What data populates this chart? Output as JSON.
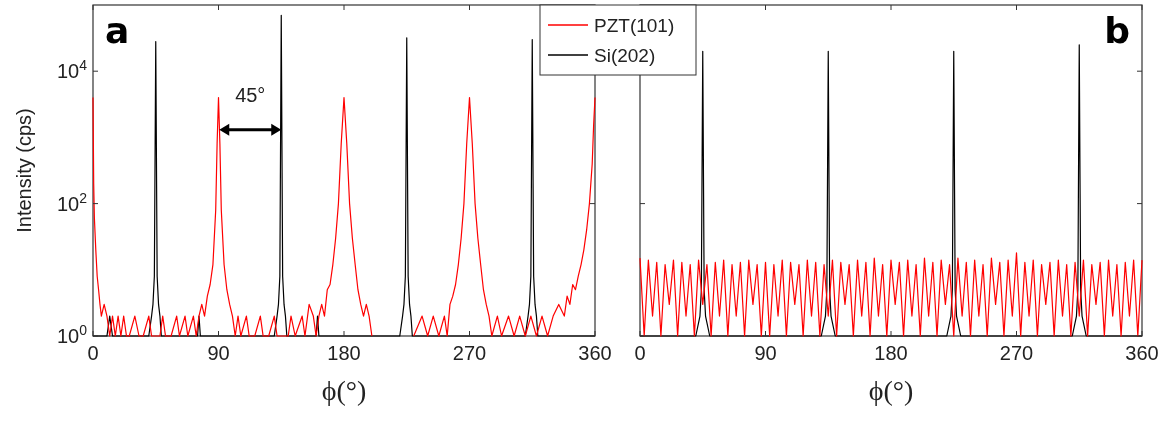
{
  "chart_data": [
    {
      "type": "line",
      "ylabel": "Intensity (cps)",
      "xlabel": "ϕ(°)",
      "xlim": [
        0,
        360
      ],
      "xticks": [
        0,
        90,
        180,
        270,
        360
      ],
      "ylim": [
        1,
        100000
      ],
      "yticks": [
        {
          "value": 1,
          "label": "10$^{0}$"
        },
        {
          "value": 100,
          "label": "10$^{2}$"
        },
        {
          "value": 10000,
          "label": "10$^{4}$"
        }
      ],
      "log": "y",
      "grid": false,
      "legend": "top right",
      "marker": "none",
      "line_style": "solid",
      "annotations": [
        "a",
        {
          "text": "45°",
          "x": 135,
          "y": 1300
        }
      ],
      "series": [
        {
          "name": "PZT(101)",
          "color": "#ff0000",
          "x": [
            0,
            0.5,
            1,
            2,
            3,
            4,
            5,
            6,
            8,
            10,
            12,
            14,
            16,
            18,
            20,
            22,
            24,
            26,
            30,
            33,
            36,
            40,
            42,
            48,
            50,
            52,
            56,
            60,
            62,
            66,
            68,
            72,
            74,
            76,
            78,
            80,
            82,
            84,
            86,
            88,
            89,
            90,
            91,
            92,
            94,
            96,
            98,
            100,
            102,
            104,
            106,
            110,
            112,
            116,
            120,
            122,
            126,
            130,
            132,
            140,
            142,
            145,
            150,
            152,
            155,
            158,
            160,
            162,
            164,
            166,
            168,
            170,
            172,
            174,
            176,
            178,
            180,
            182,
            184,
            186,
            188,
            190,
            192,
            194,
            196,
            198,
            200,
            205,
            210,
            220,
            225,
            230,
            236,
            240,
            244,
            248,
            252,
            254,
            256,
            258,
            260,
            262,
            264,
            266,
            268,
            270,
            272,
            274,
            276,
            278,
            280,
            282,
            284,
            286,
            290,
            293,
            298,
            302,
            306,
            310,
            314,
            318,
            322,
            326,
            330,
            334,
            338,
            340,
            342,
            344,
            346,
            348,
            350,
            352,
            354,
            356,
            358,
            359,
            360
          ],
          "values": [
            4000,
            200,
            60,
            20,
            8,
            5,
            3,
            2,
            3,
            2,
            1,
            2,
            1,
            2,
            1,
            2,
            1,
            1,
            2,
            1,
            1,
            2,
            1,
            1,
            2,
            1,
            1,
            2,
            1,
            2,
            1,
            2,
            1,
            2,
            3,
            2,
            4,
            6,
            12,
            80,
            800,
            4000,
            800,
            80,
            12,
            5,
            3,
            2,
            1,
            2,
            1,
            2,
            1,
            1,
            2,
            1,
            1,
            2,
            1,
            1,
            2,
            1,
            2,
            1,
            3,
            2,
            1,
            2,
            3,
            2,
            5,
            6,
            12,
            30,
            100,
            800,
            4000,
            800,
            100,
            30,
            12,
            5,
            3,
            2,
            3,
            2,
            1,
            null,
            null,
            null,
            null,
            1,
            2,
            1,
            2,
            1,
            2,
            1,
            3,
            4,
            6,
            12,
            30,
            100,
            800,
            4000,
            800,
            100,
            30,
            12,
            5,
            3,
            2,
            1,
            2,
            1,
            2,
            1,
            2,
            1,
            2,
            1,
            2,
            1,
            2,
            3,
            2,
            4,
            3,
            6,
            5,
            8,
            12,
            20,
            40,
            100,
            400,
            1500,
            4000
          ]
        },
        {
          "name": "Si(202)",
          "color": "#000000",
          "x": [
            0,
            10,
            12,
            14,
            40,
            42,
            43,
            44,
            45,
            46,
            47,
            48,
            49,
            75,
            76,
            77,
            130,
            132,
            133,
            134,
            135,
            136,
            137,
            138,
            139,
            160,
            161,
            162,
            220,
            222,
            223,
            224,
            225,
            226,
            227,
            228,
            229,
            310,
            312,
            313,
            314,
            315,
            316,
            317,
            318,
            319,
            360
          ],
          "values": [
            1,
            1,
            2,
            1,
            1,
            2,
            3,
            8,
            28000,
            8,
            3,
            2,
            1,
            1,
            2,
            1,
            1,
            2,
            3,
            8,
            70000,
            8,
            3,
            2,
            1,
            1,
            2,
            1,
            1,
            2,
            3,
            8,
            32000,
            8,
            3,
            2,
            1,
            1,
            2,
            3,
            8,
            30000,
            8,
            3,
            2,
            1,
            1
          ]
        }
      ]
    },
    {
      "type": "line",
      "xlabel": "ϕ(°)",
      "xlim": [
        0,
        360
      ],
      "xticks": [
        0,
        90,
        180,
        270,
        360
      ],
      "ylim": [
        1,
        100000
      ],
      "yticks": [
        {
          "value": 1,
          "label": null
        },
        {
          "value": 100,
          "label": null
        },
        {
          "value": 10000,
          "label": null
        }
      ],
      "tick_labels": "x",
      "log": "y",
      "grid": false,
      "marker": "none",
      "line_style": "solid",
      "annotations": [
        "b"
      ],
      "series": [
        {
          "color": "#ff0000",
          "x": [
            0,
            3,
            6,
            9,
            12,
            15,
            18,
            21,
            24,
            27,
            30,
            33,
            36,
            39,
            42,
            45,
            48,
            51,
            54,
            57,
            60,
            63,
            66,
            69,
            72,
            75,
            78,
            81,
            84,
            87,
            90,
            93,
            96,
            99,
            102,
            105,
            108,
            111,
            114,
            117,
            120,
            123,
            126,
            129,
            132,
            135,
            138,
            141,
            144,
            147,
            150,
            153,
            156,
            159,
            162,
            165,
            168,
            171,
            174,
            177,
            180,
            183,
            186,
            189,
            192,
            195,
            198,
            201,
            204,
            207,
            210,
            213,
            216,
            219,
            222,
            225,
            228,
            231,
            234,
            237,
            240,
            243,
            246,
            249,
            252,
            255,
            258,
            261,
            264,
            267,
            270,
            273,
            276,
            279,
            282,
            285,
            288,
            291,
            294,
            297,
            300,
            303,
            306,
            309,
            312,
            315,
            318,
            321,
            324,
            327,
            330,
            333,
            336,
            339,
            342,
            345,
            348,
            351,
            354,
            357,
            360
          ],
          "values": [
            15,
            1,
            14,
            2,
            13,
            1,
            12,
            3,
            14,
            1,
            13,
            2,
            12,
            1,
            14,
            3,
            12,
            1,
            13,
            2,
            14,
            1,
            12,
            2,
            13,
            1,
            14,
            3,
            12,
            1,
            13,
            1,
            12,
            2,
            14,
            1,
            13,
            3,
            12,
            1,
            14,
            2,
            13,
            1,
            12,
            2,
            14,
            1,
            13,
            3,
            12,
            1,
            14,
            2,
            13,
            1,
            15,
            2,
            12,
            1,
            14,
            3,
            13,
            1,
            14,
            2,
            12,
            1,
            15,
            2,
            13,
            1,
            14,
            3,
            12,
            1,
            15,
            2,
            13,
            1,
            14,
            2,
            12,
            1,
            15,
            3,
            13,
            1,
            14,
            2,
            18,
            1,
            13,
            2,
            14,
            1,
            12,
            3,
            13,
            1,
            14,
            2,
            12,
            1,
            13,
            2,
            14,
            1,
            12,
            3,
            13,
            1,
            14,
            2,
            12,
            1,
            13,
            2,
            14,
            1,
            14
          ]
        },
        {
          "color": "#000000",
          "x": [
            0,
            40,
            43,
            44,
            45,
            46,
            47,
            50,
            130,
            133,
            134,
            135,
            136,
            137,
            140,
            220,
            223,
            224,
            225,
            226,
            227,
            230,
            310,
            313,
            314,
            315,
            316,
            317,
            320,
            360
          ],
          "values": [
            1,
            1,
            2,
            5,
            20000,
            5,
            2,
            1,
            1,
            2,
            5,
            20000,
            5,
            2,
            1,
            1,
            2,
            5,
            20000,
            5,
            2,
            1,
            1,
            2,
            5,
            25000,
            5,
            2,
            1,
            1
          ]
        }
      ]
    }
  ]
}
